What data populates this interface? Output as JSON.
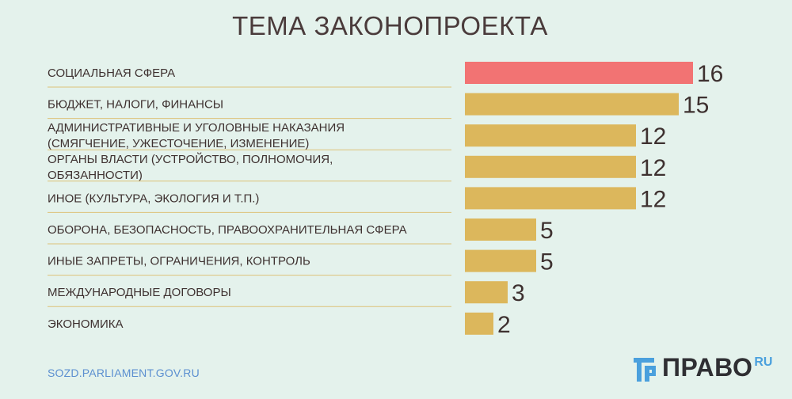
{
  "title": "ТЕМА ЗАКОНОПРОЕКТА",
  "source": "SOZD.PARLIAMENT.GOV.RU",
  "logo": {
    "name": "ПРАВО",
    "suffix": "RU"
  },
  "colors": {
    "highlight": "#f27373",
    "bar": "#dcb75c",
    "divider": "#dcb75c",
    "source": "#5b8fd0"
  },
  "chart_data": {
    "type": "bar",
    "orientation": "horizontal",
    "title": "ТЕМА ЗАКОНОПРОЕКТА",
    "categories": [
      [
        "СОЦИАЛЬНАЯ СФЕРА"
      ],
      [
        "БЮДЖЕТ, НАЛОГИ, ФИНАНСЫ"
      ],
      [
        "АДМИНИСТРАТИВНЫЕ И УГОЛОВНЫЕ НАКАЗАНИЯ",
        "(СМЯГЧЕНИЕ, УЖЕСТОЧЕНИЕ, ИЗМЕНЕНИЕ)"
      ],
      [
        "ОРГАНЫ ВЛАСТИ (УСТРОЙСТВО, ПОЛНОМОЧИЯ,",
        "ОБЯЗАННОСТИ)"
      ],
      [
        "ИНОЕ (КУЛЬТУРА, ЭКОЛОГИЯ И Т.П.)"
      ],
      [
        "ОБОРОНА, БЕЗОПАСНОСТЬ, ПРАВООХРАНИТЕЛЬНАЯ СФЕРА"
      ],
      [
        "ИНЫЕ ЗАПРЕТЫ, ОГРАНИЧЕНИЯ, КОНТРОЛЬ"
      ],
      [
        "МЕЖДУНАРОДНЫЕ ДОГОВОРЫ"
      ],
      [
        "ЭКОНОМИКА"
      ]
    ],
    "values": [
      16,
      15,
      12,
      12,
      12,
      5,
      5,
      3,
      2
    ],
    "data_labels": [
      "16",
      "15",
      "12",
      "12",
      "12",
      "5",
      "5",
      "3",
      "2"
    ],
    "highlight_index": 0,
    "xlim": [
      0,
      16
    ],
    "grid": false,
    "legend": "none"
  }
}
